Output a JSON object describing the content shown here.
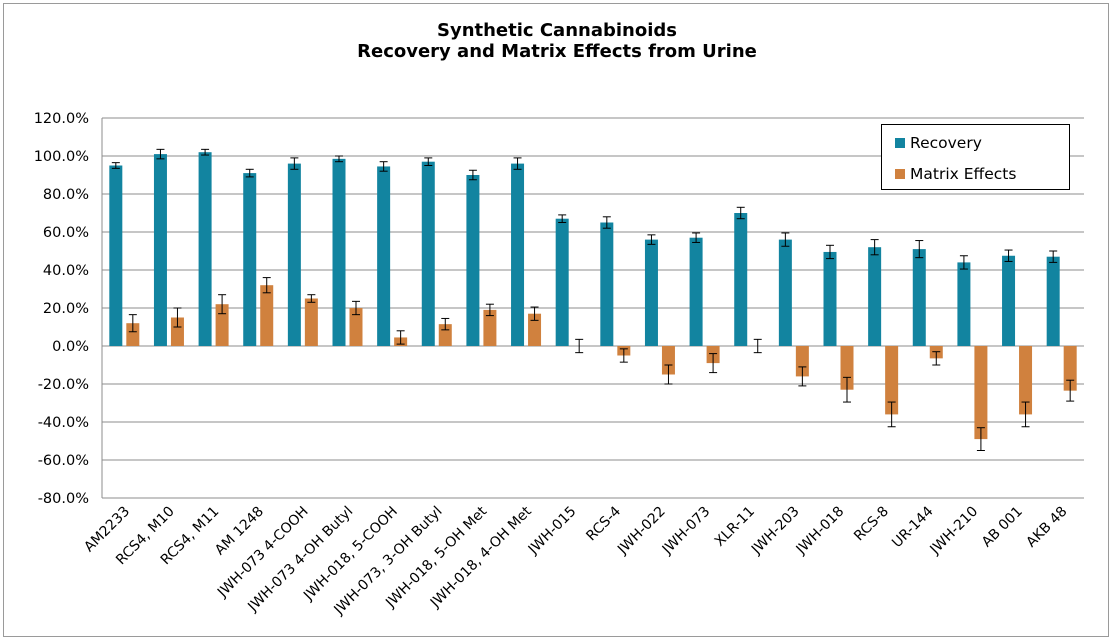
{
  "chart_data": {
    "type": "bar",
    "title": "Synthetic Cannabinoids",
    "subtitle": "Recovery and Matrix Effects from Urine",
    "xlabel": "",
    "ylabel": "",
    "ylim": [
      -80,
      120
    ],
    "yticks": [
      120,
      100,
      80,
      60,
      40,
      20,
      0,
      -20,
      -40,
      -60,
      -80
    ],
    "ytick_labels": [
      "120.0%",
      "100.0%",
      "80.0%",
      "60.0%",
      "40.0%",
      "20.0%",
      "0.0%",
      "-20.0%",
      "-40.0%",
      "-60.0%",
      "-80.0%"
    ],
    "grid": "horizontal",
    "legend_position": "top-right",
    "categories": [
      "AM2233",
      "RCS4, M10",
      "RCS4, M11",
      "AM 1248",
      "JWH-073 4-COOH",
      "JWH-073 4-OH Butyl",
      "JWH-018, 5-COOH",
      "JWH-073, 3-OH Butyl",
      "JWH-018, 5-OH Met",
      "JWH-018, 4-OH Met",
      "JWH-015",
      "RCS-4",
      "JWH-022",
      "JWH-073",
      "XLR-11",
      "JWH-203",
      "JWH-018",
      "RCS-8",
      "UR-144",
      "JWH-210",
      "AB 001",
      "AKB 48"
    ],
    "series": [
      {
        "name": "Recovery",
        "color": "#1284a0",
        "values": [
          95,
          101,
          102,
          91,
          96,
          98.5,
          94.5,
          97,
          90,
          96,
          67,
          65,
          56,
          57,
          70,
          56,
          49.5,
          52,
          51,
          44,
          47.5,
          47
        ],
        "errors": [
          1.5,
          2.5,
          1.5,
          2,
          3,
          1.5,
          2.5,
          2,
          2.5,
          3,
          2,
          3,
          2.5,
          2.5,
          3,
          3.5,
          3.5,
          4,
          4.5,
          3.5,
          3,
          3
        ]
      },
      {
        "name": "Matrix Effects",
        "color": "#d0813e",
        "values": [
          12,
          15,
          22,
          32,
          25,
          20,
          4.5,
          11.5,
          19,
          17,
          0,
          -5,
          -15,
          -9,
          0,
          -16,
          -23,
          -36,
          -6.5,
          -49,
          -36,
          -23.5
        ],
        "errors": [
          4.5,
          5,
          5,
          4,
          2,
          3.5,
          3.5,
          3,
          3,
          3.5,
          3.5,
          3.5,
          5,
          5,
          3.5,
          5,
          6.5,
          6.5,
          3.5,
          6,
          6.5,
          5.5
        ]
      }
    ]
  }
}
